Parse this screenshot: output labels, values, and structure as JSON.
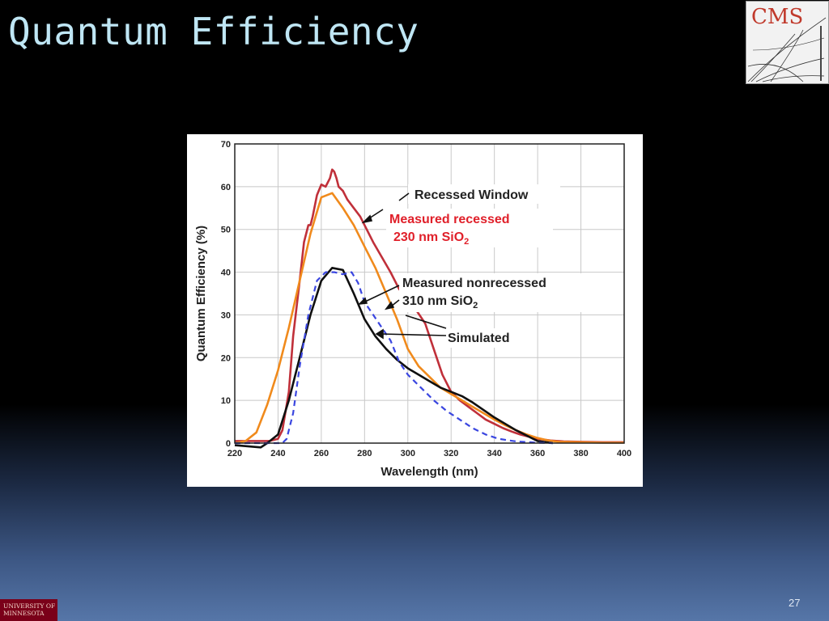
{
  "slide": {
    "title": "Quantum Efficiency",
    "number": "27",
    "logo_cms": "CMS",
    "logo_university": "University of Minnesota",
    "colors": {
      "title": "#bfe6f4",
      "umn_maroon": "#7a0019",
      "cms_red": "#c0392b"
    }
  },
  "chart_data": {
    "type": "line",
    "xlabel": "Wavelength (nm)",
    "ylabel": "Quantum Efficiency (%)",
    "xlim": [
      220,
      400
    ],
    "ylim": [
      0,
      70
    ],
    "xticks": [
      220,
      240,
      260,
      280,
      300,
      320,
      340,
      360,
      380,
      400
    ],
    "yticks": [
      0,
      10,
      20,
      30,
      40,
      50,
      60,
      70
    ],
    "grid": true,
    "series": [
      {
        "name": "Measured recessed 230 nm SiO2",
        "color": "#c0303a",
        "style": "solid",
        "x": [
          220,
          236,
          240,
          242,
          245,
          247,
          250,
          252,
          254,
          255,
          256,
          258,
          260,
          262,
          263,
          264,
          265,
          266,
          267,
          268,
          270,
          272,
          275,
          278,
          280,
          284,
          288,
          292,
          296,
          300,
          304,
          308,
          312,
          316,
          320,
          324,
          328,
          332,
          336,
          340,
          344,
          348,
          352,
          356,
          360,
          366,
          372,
          380,
          390,
          400
        ],
        "y": [
          0.5,
          0.5,
          1,
          3,
          12,
          25,
          38,
          47,
          51,
          51,
          53,
          58,
          60.5,
          60,
          61,
          62,
          64,
          63.5,
          62,
          60,
          59,
          57,
          55,
          53,
          51,
          47,
          43.5,
          40,
          36,
          34,
          31,
          28,
          22,
          16,
          12,
          10,
          8.5,
          7,
          5.5,
          4.5,
          3.5,
          2.7,
          2,
          1.5,
          1,
          0.6,
          0.4,
          0.3,
          0.2,
          0.2
        ]
      },
      {
        "name": "Measured nonrecessed 310 nm SiO2",
        "color": "#f08a1c",
        "style": "solid",
        "x": [
          220,
          225,
          230,
          235,
          240,
          245,
          250,
          255,
          260,
          265,
          270,
          275,
          280,
          285,
          290,
          295,
          300,
          305,
          310,
          315,
          320,
          325,
          330,
          335,
          340,
          345,
          350,
          355,
          360,
          365,
          370,
          380,
          390,
          400
        ],
        "y": [
          0,
          0.5,
          2.5,
          9,
          17,
          27,
          38,
          49,
          57.5,
          58.5,
          55,
          51,
          46,
          41,
          35,
          29,
          22,
          18,
          15.5,
          13,
          11.5,
          10,
          8.5,
          7,
          5.5,
          4.2,
          3,
          2,
          1.2,
          0.6,
          0.3,
          0.2,
          0.1,
          0.1
        ]
      },
      {
        "name": "Simulated",
        "color": "#101010",
        "style": "solid",
        "x": [
          220,
          232,
          235,
          240,
          245,
          250,
          255,
          260,
          265,
          270,
          275,
          280,
          285,
          290,
          295,
          300,
          305,
          310,
          315,
          320,
          325,
          330,
          340,
          350,
          360,
          367
        ],
        "y": [
          -0.5,
          -1,
          0,
          2,
          10,
          20,
          30,
          38,
          41,
          40.5,
          35,
          29,
          25,
          22,
          19.5,
          17.5,
          16,
          14.5,
          13,
          12,
          11,
          9.5,
          6,
          3,
          0.5,
          0
        ]
      },
      {
        "name": "Dashed",
        "color": "#3a46e0",
        "style": "dashed",
        "x": [
          220,
          242,
          244,
          247,
          250,
          254,
          258,
          262,
          266,
          270,
          274,
          277,
          280,
          284,
          288,
          292,
          296,
          300,
          306,
          312,
          318,
          324,
          330,
          336,
          342,
          350,
          360,
          367
        ],
        "y": [
          0,
          0,
          1,
          7,
          18,
          30,
          38,
          40,
          40,
          39.5,
          40,
          37.5,
          33,
          30,
          27,
          24,
          19,
          16,
          13,
          10,
          7.5,
          5.5,
          3.5,
          2,
          1,
          0.4,
          0.1,
          0
        ]
      }
    ],
    "annotations": {
      "recessed_window": "Recessed Window",
      "measured_recessed_line1": "Measured recessed",
      "measured_recessed_line2": "230 nm SiO",
      "measured_nonrecessed_line1": "Measured nonrecessed",
      "measured_nonrecessed_line2": "310 nm SiO",
      "subscript": "2",
      "simulated": "Simulated"
    }
  }
}
